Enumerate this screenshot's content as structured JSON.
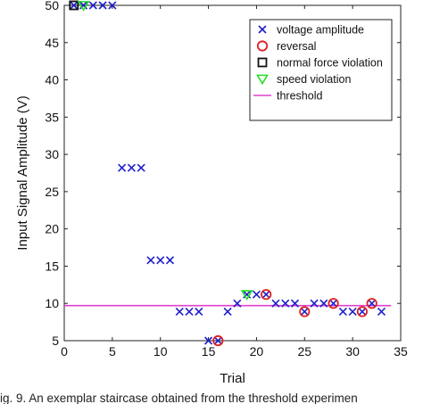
{
  "chart_data": {
    "type": "scatter",
    "title": "",
    "xlabel": "Trial",
    "ylabel": "Input Signal Amplitude (V)",
    "xlim": [
      0,
      35
    ],
    "ylim": [
      5,
      50
    ],
    "x_ticks": [
      0,
      5,
      10,
      15,
      20,
      25,
      30,
      35
    ],
    "y_ticks": [
      5,
      10,
      15,
      20,
      25,
      30,
      35,
      40,
      45,
      50
    ],
    "grid": false,
    "legend_position": "top-right",
    "legend": [
      {
        "label": "voltage amplitude",
        "marker": "x",
        "color": "#1f1fcc"
      },
      {
        "label": "reversal",
        "marker": "circle",
        "color": "#dd2222"
      },
      {
        "label": "normal force violation",
        "marker": "square",
        "color": "#111111"
      },
      {
        "label": "speed violation",
        "marker": "triangle-down",
        "color": "#22dd22"
      },
      {
        "label": "threshold",
        "marker": "line",
        "color": "#e040d0"
      }
    ],
    "series": [
      {
        "name": "voltage amplitude",
        "marker": "x",
        "color": "#1f1fcc",
        "points": [
          {
            "x": 1,
            "y": 50
          },
          {
            "x": 2,
            "y": 50
          },
          {
            "x": 3,
            "y": 50
          },
          {
            "x": 4,
            "y": 50
          },
          {
            "x": 5,
            "y": 50
          },
          {
            "x": 6,
            "y": 28.2
          },
          {
            "x": 7,
            "y": 28.2
          },
          {
            "x": 8,
            "y": 28.2
          },
          {
            "x": 9,
            "y": 15.8
          },
          {
            "x": 10,
            "y": 15.8
          },
          {
            "x": 11,
            "y": 15.8
          },
          {
            "x": 12,
            "y": 8.9
          },
          {
            "x": 13,
            "y": 8.9
          },
          {
            "x": 14,
            "y": 8.9
          },
          {
            "x": 15,
            "y": 5
          },
          {
            "x": 16,
            "y": 5
          },
          {
            "x": 17,
            "y": 8.9
          },
          {
            "x": 18,
            "y": 10
          },
          {
            "x": 19,
            "y": 11.2
          },
          {
            "x": 20,
            "y": 11.2
          },
          {
            "x": 21,
            "y": 11.2
          },
          {
            "x": 22,
            "y": 10
          },
          {
            "x": 23,
            "y": 10
          },
          {
            "x": 24,
            "y": 10
          },
          {
            "x": 25,
            "y": 8.9
          },
          {
            "x": 26,
            "y": 10
          },
          {
            "x": 27,
            "y": 10
          },
          {
            "x": 28,
            "y": 10
          },
          {
            "x": 29,
            "y": 8.9
          },
          {
            "x": 30,
            "y": 8.9
          },
          {
            "x": 31,
            "y": 8.9
          },
          {
            "x": 32,
            "y": 10
          },
          {
            "x": 33,
            "y": 8.9
          }
        ]
      },
      {
        "name": "reversal",
        "marker": "circle",
        "color": "#dd2222",
        "points": [
          {
            "x": 16,
            "y": 5
          },
          {
            "x": 21,
            "y": 11.2
          },
          {
            "x": 25,
            "y": 8.9
          },
          {
            "x": 28,
            "y": 10
          },
          {
            "x": 31,
            "y": 8.9
          },
          {
            "x": 32,
            "y": 10
          }
        ]
      },
      {
        "name": "normal force violation",
        "marker": "square",
        "color": "#111111",
        "points": [
          {
            "x": 1,
            "y": 50
          }
        ]
      },
      {
        "name": "speed violation",
        "marker": "triangle-down",
        "color": "#22dd22",
        "points": [
          {
            "x": 2,
            "y": 50
          },
          {
            "x": 19,
            "y": 11.2
          }
        ]
      }
    ],
    "threshold": {
      "name": "threshold",
      "y": 9.7,
      "x_range": [
        0,
        34
      ],
      "color": "#e040d0"
    }
  },
  "caption": "ig. 9. An exemplar staircase obtained from the threshold experimen"
}
